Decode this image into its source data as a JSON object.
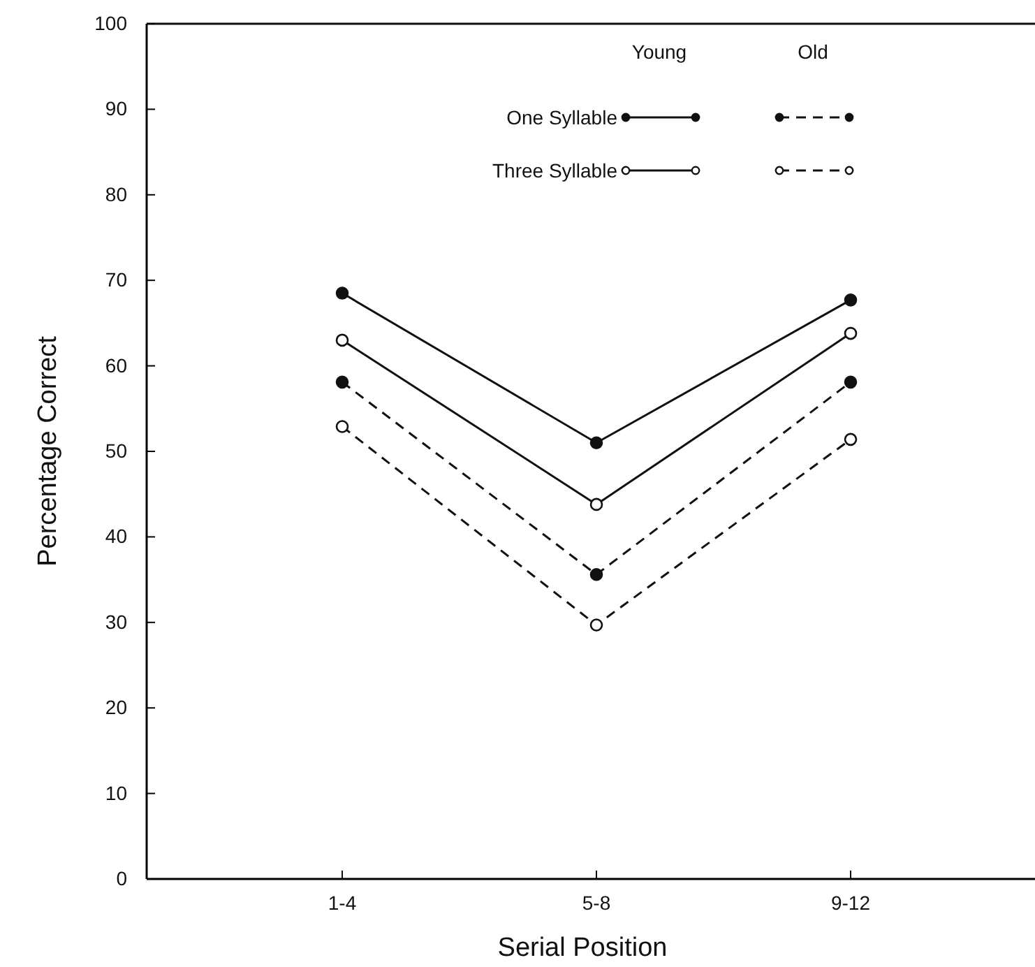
{
  "chart_data": {
    "type": "line",
    "xlabel": "Serial Position",
    "ylabel": "Percentage Correct",
    "categories": [
      "1-4",
      "5-8",
      "9-12"
    ],
    "series": [
      {
        "name": "One Syllable",
        "color": "#111111",
        "line_style": "solid",
        "values": [
          68.5,
          51.0,
          67.7
        ]
      },
      {
        "name": "Three Syllable",
        "color": "#111111",
        "line_style": "solid",
        "values": [
          63.0,
          43.8,
          63.8
        ]
      },
      {
        "color": "#111111",
        "line_style": "dashed",
        "values": [
          58.1,
          35.6,
          58.1
        ]
      },
      {
        "color": "#111111",
        "line_style": "dashed",
        "values": [
          52.9,
          29.7,
          51.4
        ]
      }
    ],
    "annotations": [
      "Young",
      "Old"
    ],
    "ylim": [
      0,
      100
    ],
    "yticks": [
      0,
      10,
      20,
      30,
      40,
      50,
      60,
      70,
      80,
      90,
      100
    ],
    "marker": "circle",
    "legend": "top right",
    "grid": false
  }
}
